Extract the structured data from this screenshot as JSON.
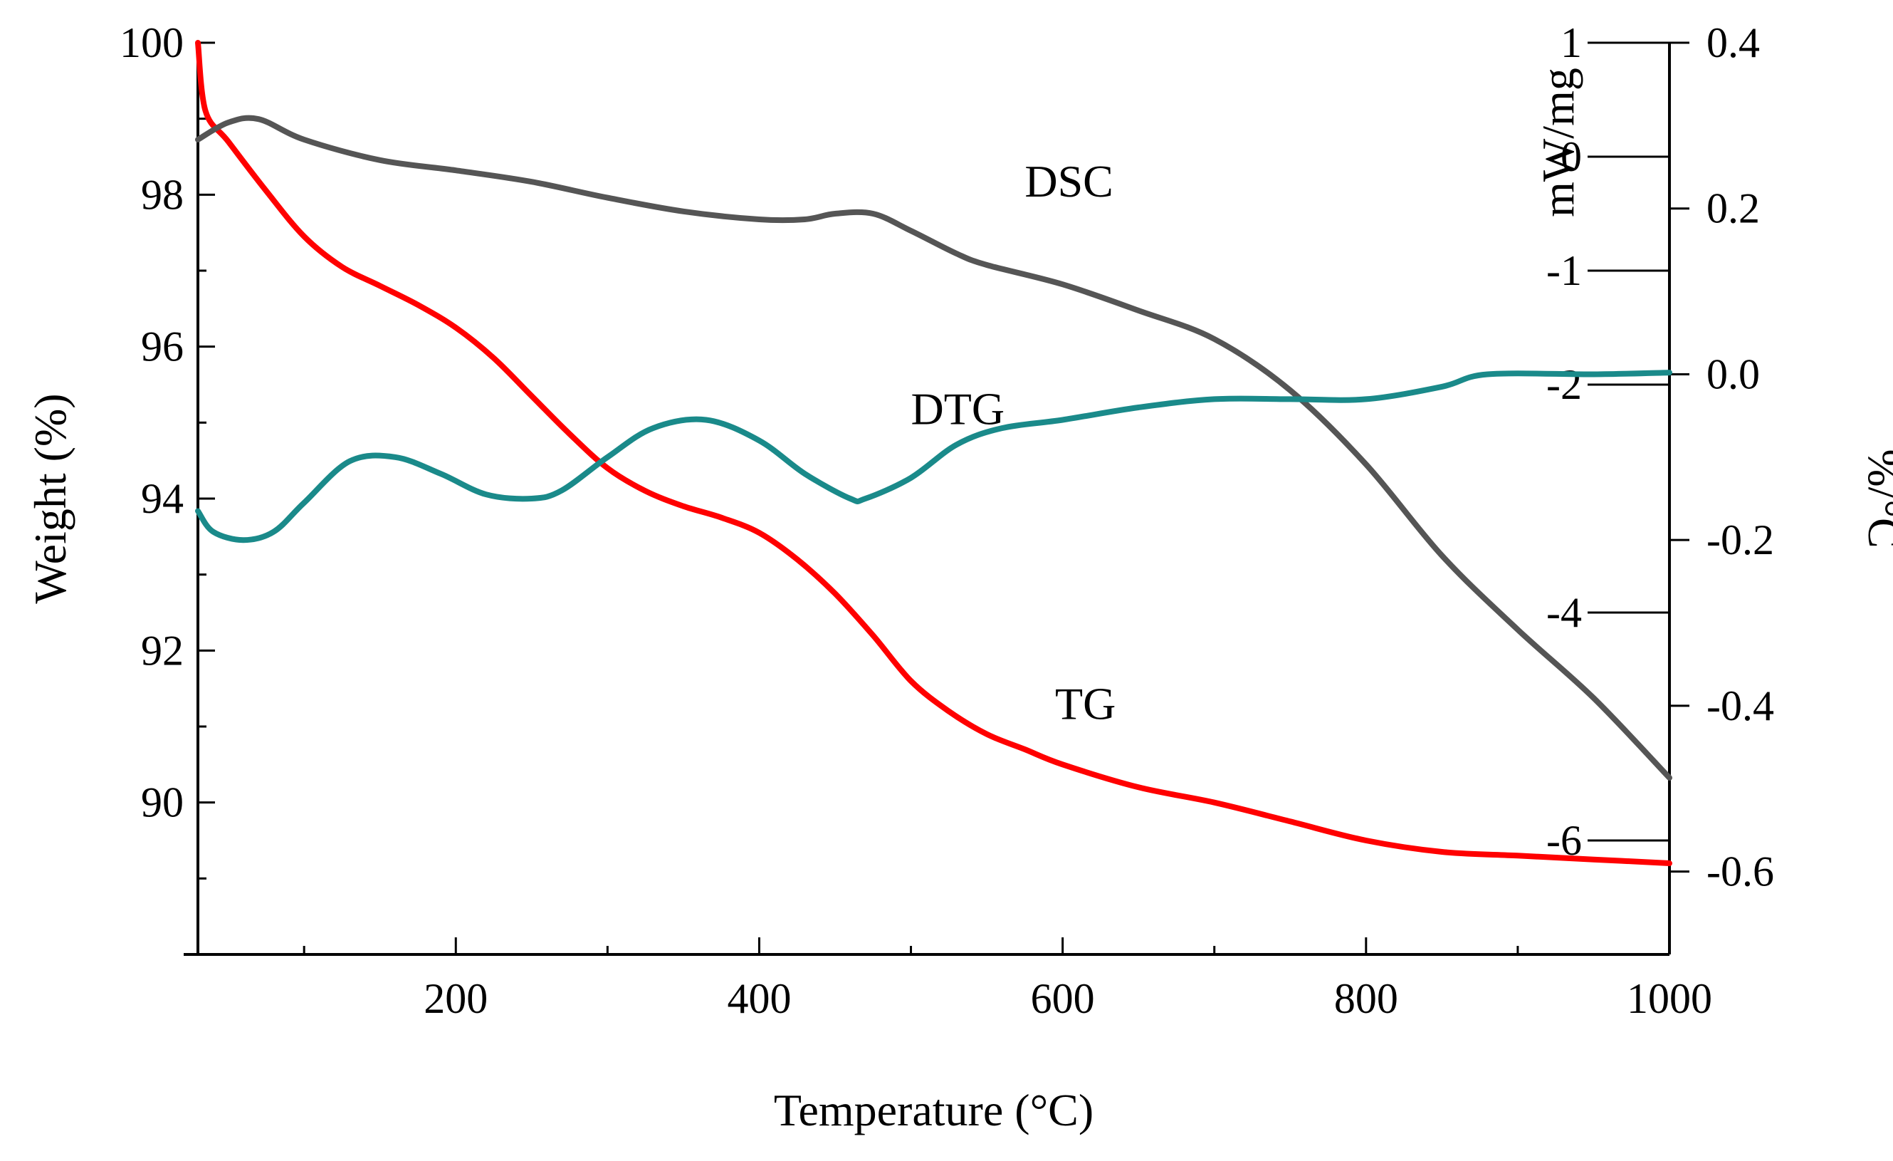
{
  "chart_data": {
    "type": "line",
    "title": "",
    "xlabel": "Temperature (°C)",
    "xlim": [
      30,
      1000
    ],
    "xticks": [
      200,
      400,
      600,
      800,
      1000
    ],
    "xtick_labels": [
      "200",
      "400",
      "600",
      "800",
      "1000"
    ],
    "axes": {
      "weight": {
        "label": "Weight (%)",
        "position": "left",
        "range": [
          88,
          100
        ],
        "ticks": [
          90,
          92,
          94,
          96,
          98,
          100
        ],
        "tick_labels": [
          "90",
          "92",
          "94",
          "96",
          "98",
          "100"
        ]
      },
      "dsc": {
        "label": "mW/mg",
        "position": "right-inner",
        "range": [
          -7,
          1
        ],
        "ticks": [
          -6,
          -4,
          -2,
          0,
          1
        ],
        "tick_labels": [
          "-6",
          "-4",
          "-2",
          "0",
          "1"
        ],
        "extra_ticks": [
          -1
        ],
        "extra_tick_labels": [
          "-1"
        ]
      },
      "dtg": {
        "label": "%/°C",
        "position": "right-outer",
        "range": [
          -0.7,
          0.4
        ],
        "ticks": [
          -0.6,
          -0.4,
          -0.2,
          0.0,
          0.2,
          0.4
        ],
        "tick_labels": [
          "-0.6",
          "-0.4",
          "-0.2",
          "0.0",
          "0.2",
          "0.4"
        ]
      }
    },
    "series": [
      {
        "name": "TG",
        "axis": "weight",
        "color": "#ff0000",
        "x": [
          30,
          35,
          50,
          75,
          100,
          125,
          150,
          175,
          200,
          225,
          250,
          275,
          300,
          325,
          350,
          375,
          400,
          425,
          450,
          475,
          500,
          525,
          550,
          575,
          600,
          650,
          700,
          750,
          800,
          850,
          900,
          950,
          1000
        ],
        "y": [
          100.0,
          99.1,
          98.7,
          98.05,
          97.45,
          97.05,
          96.8,
          96.55,
          96.25,
          95.85,
          95.35,
          94.85,
          94.4,
          94.1,
          93.9,
          93.75,
          93.55,
          93.2,
          92.75,
          92.2,
          91.6,
          91.2,
          90.9,
          90.7,
          90.5,
          90.2,
          90.0,
          89.75,
          89.5,
          89.35,
          89.3,
          89.25,
          89.2
        ]
      },
      {
        "name": "DSC",
        "axis": "dsc",
        "color": "#555555",
        "x": [
          30,
          50,
          70,
          100,
          150,
          200,
          250,
          300,
          350,
          400,
          430,
          450,
          475,
          500,
          530,
          550,
          600,
          650,
          700,
          750,
          800,
          850,
          900,
          950,
          1000
        ],
        "y": [
          0.15,
          0.3,
          0.33,
          0.15,
          -0.03,
          -0.12,
          -0.22,
          -0.36,
          -0.48,
          -0.55,
          -0.55,
          -0.5,
          -0.5,
          -0.65,
          -0.85,
          -0.95,
          -1.12,
          -1.35,
          -1.6,
          -2.05,
          -2.7,
          -3.5,
          -4.15,
          -4.75,
          -5.45
        ]
      },
      {
        "name": "DTG",
        "axis": "dtg",
        "color": "#1a8a8a",
        "x": [
          30,
          40,
          60,
          80,
          100,
          130,
          160,
          190,
          220,
          250,
          270,
          300,
          330,
          365,
          400,
          430,
          460,
          470,
          500,
          530,
          560,
          600,
          650,
          700,
          750,
          800,
          850,
          880,
          950,
          1000
        ],
        "y": [
          -0.165,
          -0.19,
          -0.2,
          -0.19,
          -0.155,
          -0.105,
          -0.1,
          -0.12,
          -0.145,
          -0.15,
          -0.14,
          -0.1,
          -0.065,
          -0.055,
          -0.08,
          -0.12,
          -0.15,
          -0.15,
          -0.125,
          -0.085,
          -0.065,
          -0.055,
          -0.04,
          -0.03,
          -0.03,
          -0.03,
          -0.015,
          0.0,
          0.0,
          0.002
        ]
      }
    ],
    "annotations": [
      {
        "text": "DSC",
        "series": "DSC",
        "x": 575,
        "axis": "dsc",
        "y": -0.35
      },
      {
        "text": "DTG",
        "series": "DTG",
        "x": 500,
        "axis": "dtg",
        "y": -0.06
      },
      {
        "text": "TG",
        "series": "TG",
        "x": 595,
        "axis": "weight",
        "y": 91.1
      }
    ]
  }
}
